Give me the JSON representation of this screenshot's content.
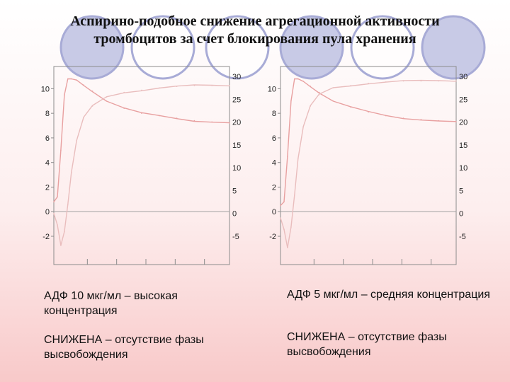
{
  "title": {
    "line1": "Аспирино-подобное снижение агрегационной активности",
    "line2": "тромбоцитов за счет блокирования пула хранения"
  },
  "colors": {
    "circle_fill": "#c8cae6",
    "circle_stroke": "#a8abd6",
    "curve_aggregation": "#e8a0a0",
    "curve_release": "#e9bdbd",
    "frame": "#8c8c8c"
  },
  "captions": {
    "left": {
      "condition": "АДФ 10 мкг/мл – высокая концентрация",
      "result": "СНИЖЕНА – отсутствие фазы высвобождения"
    },
    "right": {
      "condition": "АДФ 5 мкг/мл – средняя концентрация",
      "result": "СНИЖЕНА – отсутствие фазы высвобождения"
    }
  },
  "chart_data": [
    {
      "type": "line",
      "title": "",
      "xlabel": "",
      "ylabel": "",
      "grid": false,
      "y_left": {
        "ticks": [
          "10",
          "8",
          "6",
          "4",
          "2",
          "0",
          "-2"
        ],
        "lim": [
          -2,
          11
        ]
      },
      "y_right": {
        "ticks": [
          "30",
          "25",
          "20",
          "15",
          "10",
          "5",
          "0",
          "-5"
        ],
        "lim": [
          -5,
          30
        ]
      },
      "x": [
        0,
        0.02,
        0.04,
        0.06,
        0.08,
        0.1,
        0.13,
        0.17,
        0.22,
        0.3,
        0.4,
        0.5,
        0.6,
        0.7,
        0.8,
        0.9,
        1.0
      ],
      "series": [
        {
          "name": "",
          "axis": "left",
          "values": [
            0.8,
            1.2,
            5.0,
            9.5,
            10.8,
            10.8,
            10.7,
            10.3,
            9.8,
            9.0,
            8.4,
            8.0,
            7.8,
            7.6,
            7.4,
            7.3,
            7.2
          ]
        },
        {
          "name": "",
          "axis": "right",
          "values": [
            0,
            -2.5,
            -7,
            -4,
            2,
            9,
            16,
            21,
            23.5,
            25.5,
            26.5,
            27,
            27.5,
            27.8,
            28,
            28,
            28
          ]
        }
      ]
    },
    {
      "type": "line",
      "title": "",
      "xlabel": "",
      "ylabel": "",
      "grid": false,
      "y_left": {
        "ticks": [
          "10",
          "8",
          "6",
          "4",
          "2",
          "0",
          "-2"
        ],
        "lim": [
          -2,
          11
        ]
      },
      "y_right": {
        "ticks": [
          "30",
          "25",
          "20",
          "15",
          "10",
          "5",
          "0",
          "-5"
        ],
        "lim": [
          -5,
          30
        ]
      },
      "x": [
        0,
        0.02,
        0.04,
        0.06,
        0.08,
        0.1,
        0.13,
        0.17,
        0.22,
        0.3,
        0.4,
        0.5,
        0.6,
        0.7,
        0.8,
        0.9,
        1.0
      ],
      "series": [
        {
          "name": "",
          "axis": "left",
          "values": [
            0.5,
            0.8,
            4.5,
            9.0,
            10.8,
            10.8,
            10.6,
            10.2,
            9.7,
            9.0,
            8.5,
            8.1,
            7.8,
            7.6,
            7.5,
            7.4,
            7.3
          ]
        },
        {
          "name": "",
          "axis": "right",
          "values": [
            -1,
            -3.5,
            -7.5,
            -3,
            4,
            12,
            19,
            23.5,
            26,
            27.5,
            28,
            28.5,
            28.8,
            29,
            29,
            29,
            29
          ]
        }
      ]
    }
  ]
}
